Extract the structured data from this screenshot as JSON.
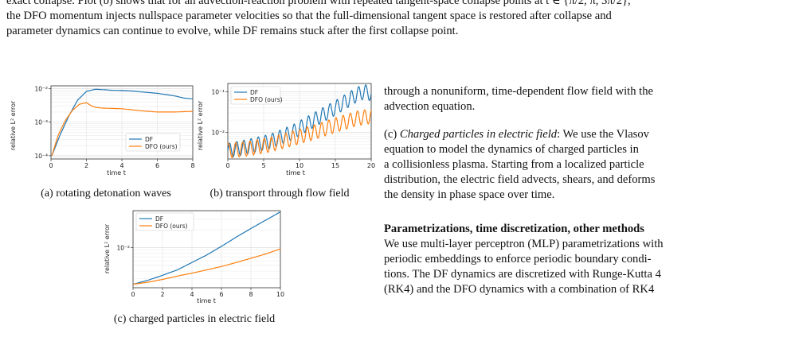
{
  "top_text": {
    "line1": "exact collapse. Plot (b) shows that for an advection-reaction problem with repeated tangent-space collapse points at t ∈ {π/2, π, 3π/2},",
    "line2": "the DFO momentum injects nullspace parameter velocities so that the full-dimensional tangent space is restored after collapse and",
    "line3": "parameter dynamics can continue to evolve, while DF remains stuck after the first collapse point."
  },
  "figures": {
    "a": {
      "caption": "(a) rotating detonation waves",
      "ylabel": "relative L² error",
      "xlabel": "time t",
      "legend": [
        "DF",
        "DFO (ours)"
      ],
      "chart_data": {
        "type": "line",
        "x_range": [
          0,
          8
        ],
        "y_scale": "log",
        "x_ticks": [
          "0",
          "2",
          "4",
          "6",
          "8"
        ],
        "y_ticks": [
          "10⁻⁴",
          "10⁻³",
          "10⁻²"
        ],
        "legend_position": "lower-right",
        "series": [
          {
            "name": "DF",
            "color": "#1f77b4",
            "x": [
              0.05,
              0.5,
              1.0,
              1.5,
              2.0,
              2.5,
              3.0,
              3.5,
              4.0,
              4.5,
              5.0,
              5.5,
              6.0,
              6.5,
              7.0,
              7.5,
              8.0
            ],
            "y": [
              0.0001,
              0.0004,
              0.0015,
              0.0045,
              0.0082,
              0.0095,
              0.0092,
              0.0088,
              0.0087,
              0.0085,
              0.008,
              0.0076,
              0.0072,
              0.0066,
              0.006,
              0.0052,
              0.0049
            ]
          },
          {
            "name": "DFO (ours)",
            "color": "#ff7f0e",
            "x": [
              0.05,
              0.4,
              0.8,
              1.2,
              1.6,
              2.0,
              2.3,
              2.6,
              3.0,
              4.0,
              5.0,
              6.0,
              7.0,
              8.0
            ],
            "y": [
              0.0001,
              0.0004,
              0.0011,
              0.0022,
              0.0034,
              0.0038,
              0.003,
              0.0027,
              0.0026,
              0.0025,
              0.0022,
              0.002,
              0.002,
              0.0021
            ]
          }
        ]
      }
    },
    "b": {
      "caption": "(b) transport through flow field",
      "ylabel": "relative L² error",
      "xlabel": "time t",
      "legend": [
        "DF",
        "DFO (ours)"
      ],
      "chart_data": {
        "type": "line",
        "x_range": [
          0,
          20
        ],
        "y_scale": "log",
        "x_ticks": [
          "0",
          "5",
          "10",
          "15",
          "20"
        ],
        "y_ticks": [
          "10⁻²",
          "10⁻¹"
        ],
        "legend_position": "top-left",
        "series": [
          {
            "name": "DF",
            "color": "#1f77b4",
            "trend_x": [
              0,
              3,
              6,
              9,
              12,
              15,
              18,
              19,
              20
            ],
            "trend_y": [
              0.0035,
              0.0045,
              0.006,
              0.01,
              0.02,
              0.04,
              0.085,
              0.1,
              0.09
            ],
            "oscillation_amplitude": 0.18,
            "oscillation_period": 1.0
          },
          {
            "name": "DFO (ours)",
            "color": "#ff7f0e",
            "trend_x": [
              0,
              3,
              6,
              9,
              12,
              15,
              18,
              20
            ],
            "trend_y": [
              0.0035,
              0.004,
              0.005,
              0.007,
              0.01,
              0.015,
              0.022,
              0.025
            ],
            "oscillation_amplitude": 0.18,
            "oscillation_period": 1.0
          }
        ]
      }
    },
    "c": {
      "caption": "(c) charged particles in electric field",
      "ylabel": "relative L² error",
      "xlabel": "time t",
      "legend": [
        "DF",
        "DFO (ours)"
      ],
      "chart_data": {
        "type": "line",
        "x_range": [
          0,
          10
        ],
        "y_scale": "log",
        "x_ticks": [
          "0",
          "2",
          "4",
          "6",
          "8",
          "10"
        ],
        "y_ticks": [
          "10⁻²"
        ],
        "legend_position": "top-left",
        "series": [
          {
            "name": "DF",
            "color": "#1f77b4",
            "x": [
              0,
              0.5,
              1,
              2,
              3,
              4,
              5,
              6,
              7,
              8,
              9,
              10
            ],
            "y": [
              0.0024,
              0.0026,
              0.0028,
              0.0034,
              0.0042,
              0.0056,
              0.0075,
              0.0105,
              0.015,
              0.021,
              0.029,
              0.04
            ]
          },
          {
            "name": "DFO (ours)",
            "color": "#ff7f0e",
            "x": [
              0,
              0.5,
              1,
              2,
              3,
              4,
              5,
              6,
              7,
              8,
              9,
              10
            ],
            "y": [
              0.0024,
              0.0025,
              0.0026,
              0.0029,
              0.0033,
              0.0037,
              0.0042,
              0.0048,
              0.0056,
              0.0066,
              0.0078,
              0.0095
            ]
          }
        ]
      }
    }
  },
  "right_text": {
    "p1_l1": "through a nonuniform, time-dependent flow field with the",
    "p1_l2": "advection equation.",
    "p2_l1_a": "(c) ",
    "p2_l1_em": "Charged particles in electric field",
    "p2_l1_b": ": We use the Vlasov",
    "p2_l2": "equation to model the dynamics of charged particles in",
    "p2_l3": "a collisionless plasma. Starting from a localized particle",
    "p2_l4": "distribution, the electric field advects, shears, and deforms",
    "p2_l5": "the density in phase space over time.",
    "heading": "Parametrizations, time discretization, other methods",
    "p3_l1": "We use multi-layer perceptron (MLP) parametrizations with",
    "p3_l2": "periodic embeddings to enforce periodic boundary condi-",
    "p3_l3": "tions. The DF dynamics are discretized with Runge-Kutta 4",
    "p3_l4": "(RK4) and the DFO dynamics with a combination of RK4"
  }
}
